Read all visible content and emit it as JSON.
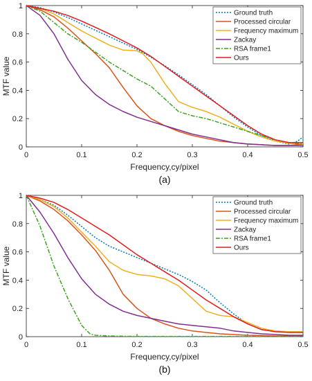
{
  "chart_data": [
    {
      "type": "line",
      "caption": "(a)",
      "xlabel": "Frequency,cy/pixel",
      "ylabel": "MTF value",
      "xlim": [
        0,
        0.5
      ],
      "ylim": [
        0,
        1
      ],
      "xticks": [
        0,
        0.1,
        0.2,
        0.3,
        0.4,
        0.5
      ],
      "yticks": [
        0,
        0.2,
        0.4,
        0.6,
        0.8,
        1
      ],
      "xtick_labels": [
        "0",
        "0.1",
        "0.2",
        "0.3",
        "0.4",
        "0.5"
      ],
      "ytick_labels": [
        "0",
        "0.2",
        "0.4",
        "0.6",
        "0.8",
        "1"
      ],
      "grid": false,
      "legend_position": "top-right",
      "series": [
        {
          "name": "Ground truth",
          "color": "#0072BD",
          "dash": "dotted",
          "x": [
            0,
            0.025,
            0.05,
            0.075,
            0.1,
            0.125,
            0.15,
            0.175,
            0.2,
            0.225,
            0.25,
            0.275,
            0.3,
            0.325,
            0.35,
            0.375,
            0.4,
            0.425,
            0.45,
            0.475,
            0.49,
            0.5
          ],
          "y": [
            1,
            0.985,
            0.955,
            0.915,
            0.87,
            0.825,
            0.78,
            0.735,
            0.69,
            0.635,
            0.575,
            0.51,
            0.44,
            0.37,
            0.29,
            0.21,
            0.14,
            0.08,
            0.04,
            0.02,
            0.04,
            0.07
          ]
        },
        {
          "name": "Processed circular",
          "color": "#D95319",
          "dash": "solid",
          "x": [
            0,
            0.025,
            0.05,
            0.075,
            0.1,
            0.125,
            0.15,
            0.175,
            0.2,
            0.225,
            0.25,
            0.275,
            0.3,
            0.325,
            0.35,
            0.375,
            0.4,
            0.425,
            0.45,
            0.475,
            0.5
          ],
          "y": [
            1,
            0.97,
            0.92,
            0.84,
            0.75,
            0.66,
            0.56,
            0.42,
            0.29,
            0.2,
            0.15,
            0.11,
            0.08,
            0.06,
            0.04,
            0.03,
            0.02,
            0.015,
            0.01,
            0.01,
            0.02
          ]
        },
        {
          "name": "Frequency maximum",
          "color": "#EDB120",
          "dash": "solid",
          "x": [
            0,
            0.025,
            0.05,
            0.075,
            0.1,
            0.125,
            0.15,
            0.175,
            0.2,
            0.21,
            0.225,
            0.25,
            0.275,
            0.3,
            0.325,
            0.35,
            0.375,
            0.4,
            0.425,
            0.45,
            0.475,
            0.5
          ],
          "y": [
            1,
            0.98,
            0.94,
            0.88,
            0.82,
            0.77,
            0.72,
            0.685,
            0.68,
            0.66,
            0.6,
            0.45,
            0.32,
            0.28,
            0.25,
            0.21,
            0.16,
            0.11,
            0.07,
            0.04,
            0.025,
            0.02
          ]
        },
        {
          "name": "Zackay",
          "color": "#7E2F8E",
          "dash": "solid",
          "x": [
            0,
            0.025,
            0.05,
            0.075,
            0.1,
            0.125,
            0.15,
            0.175,
            0.2,
            0.225,
            0.25,
            0.275,
            0.3,
            0.325,
            0.35,
            0.375,
            0.4,
            0.425,
            0.45,
            0.475,
            0.5
          ],
          "y": [
            1,
            0.93,
            0.8,
            0.62,
            0.47,
            0.37,
            0.3,
            0.25,
            0.21,
            0.18,
            0.15,
            0.12,
            0.09,
            0.07,
            0.05,
            0.03,
            0.02,
            0.015,
            0.01,
            0.01,
            0.01
          ]
        },
        {
          "name": "RSA frame1",
          "color": "#3BA31D",
          "dash": "dashdot",
          "x": [
            0,
            0.025,
            0.05,
            0.075,
            0.1,
            0.125,
            0.15,
            0.175,
            0.2,
            0.225,
            0.25,
            0.275,
            0.3,
            0.325,
            0.35,
            0.375,
            0.4,
            0.425,
            0.45,
            0.475,
            0.5
          ],
          "y": [
            1,
            0.96,
            0.88,
            0.8,
            0.74,
            0.67,
            0.6,
            0.54,
            0.48,
            0.43,
            0.34,
            0.25,
            0.22,
            0.2,
            0.17,
            0.14,
            0.11,
            0.08,
            0.05,
            0.03,
            0.02
          ]
        },
        {
          "name": "Ours",
          "color": "#E31A1C",
          "dash": "solid",
          "x": [
            0,
            0.025,
            0.05,
            0.075,
            0.1,
            0.125,
            0.15,
            0.175,
            0.2,
            0.225,
            0.25,
            0.275,
            0.3,
            0.325,
            0.35,
            0.375,
            0.4,
            0.425,
            0.45,
            0.475,
            0.5
          ],
          "y": [
            1,
            0.98,
            0.96,
            0.93,
            0.89,
            0.845,
            0.8,
            0.75,
            0.7,
            0.64,
            0.57,
            0.5,
            0.43,
            0.36,
            0.29,
            0.22,
            0.15,
            0.09,
            0.05,
            0.03,
            0.03
          ]
        }
      ]
    },
    {
      "type": "line",
      "caption": "(b)",
      "xlabel": "Frequency,cy/pixel",
      "ylabel": "MTF value",
      "xlim": [
        0,
        0.5
      ],
      "ylim": [
        0,
        1
      ],
      "xticks": [
        0,
        0.1,
        0.2,
        0.3,
        0.4,
        0.5
      ],
      "yticks": [
        0,
        0.2,
        0.4,
        0.6,
        0.8,
        1
      ],
      "xtick_labels": [
        "0",
        "0.1",
        "0.2",
        "0.3",
        "0.4",
        "0.5"
      ],
      "ytick_labels": [
        "0",
        "0.2",
        "0.4",
        "0.6",
        "0.8",
        "1"
      ],
      "grid": false,
      "legend_position": "top-right",
      "series": [
        {
          "name": "Ground truth",
          "color": "#0072BD",
          "dash": "dotted",
          "x": [
            0,
            0.025,
            0.05,
            0.075,
            0.1,
            0.125,
            0.15,
            0.175,
            0.2,
            0.225,
            0.25,
            0.275,
            0.3,
            0.325,
            0.35,
            0.375,
            0.4,
            0.425,
            0.45,
            0.475,
            0.5
          ],
          "y": [
            1,
            0.97,
            0.93,
            0.86,
            0.78,
            0.7,
            0.64,
            0.6,
            0.56,
            0.52,
            0.48,
            0.44,
            0.39,
            0.33,
            0.24,
            0.16,
            0.09,
            0.05,
            0.04,
            0.035,
            0.035
          ]
        },
        {
          "name": "Processed circular",
          "color": "#D95319",
          "dash": "solid",
          "x": [
            0,
            0.025,
            0.05,
            0.075,
            0.1,
            0.125,
            0.15,
            0.175,
            0.2,
            0.225,
            0.25,
            0.275,
            0.3,
            0.325,
            0.35,
            0.375,
            0.4,
            0.425,
            0.45,
            0.475,
            0.5
          ],
          "y": [
            1,
            0.96,
            0.9,
            0.82,
            0.72,
            0.61,
            0.47,
            0.3,
            0.2,
            0.13,
            0.09,
            0.06,
            0.04,
            0.03,
            0.02,
            0.015,
            0.01,
            0.008,
            0.005,
            0.005,
            0.005
          ]
        },
        {
          "name": "Frequency maximum",
          "color": "#EDB120",
          "dash": "solid",
          "x": [
            0,
            0.025,
            0.05,
            0.075,
            0.1,
            0.125,
            0.15,
            0.175,
            0.2,
            0.225,
            0.25,
            0.275,
            0.3,
            0.325,
            0.35,
            0.375,
            0.4,
            0.425,
            0.45,
            0.475,
            0.5
          ],
          "y": [
            1,
            0.97,
            0.92,
            0.84,
            0.74,
            0.64,
            0.53,
            0.47,
            0.44,
            0.43,
            0.41,
            0.36,
            0.27,
            0.18,
            0.15,
            0.14,
            0.1,
            0.06,
            0.04,
            0.035,
            0.035
          ]
        },
        {
          "name": "Zackay",
          "color": "#7E2F8E",
          "dash": "solid",
          "x": [
            0,
            0.025,
            0.05,
            0.075,
            0.1,
            0.125,
            0.15,
            0.175,
            0.2,
            0.225,
            0.25,
            0.275,
            0.3,
            0.325,
            0.35,
            0.375,
            0.4,
            0.425,
            0.45,
            0.475,
            0.5
          ],
          "y": [
            1,
            0.88,
            0.73,
            0.56,
            0.41,
            0.3,
            0.23,
            0.18,
            0.15,
            0.13,
            0.11,
            0.09,
            0.08,
            0.07,
            0.06,
            0.04,
            0.03,
            0.02,
            0.015,
            0.01,
            0.01
          ]
        },
        {
          "name": "RSA frame1",
          "color": "#3BA31D",
          "dash": "dashdot",
          "x": [
            0,
            0.025,
            0.05,
            0.075,
            0.1,
            0.115,
            0.125,
            0.15,
            0.175,
            0.2,
            0.3,
            0.4,
            0.5
          ],
          "y": [
            1,
            0.78,
            0.5,
            0.27,
            0.08,
            0.02,
            0.01,
            0.005,
            0.003,
            0.002,
            0.002,
            0.002,
            0.002
          ]
        },
        {
          "name": "Ours",
          "color": "#E31A1C",
          "dash": "solid",
          "x": [
            0,
            0.025,
            0.05,
            0.075,
            0.1,
            0.125,
            0.15,
            0.175,
            0.2,
            0.225,
            0.25,
            0.275,
            0.3,
            0.325,
            0.35,
            0.375,
            0.4,
            0.425,
            0.45,
            0.475,
            0.5
          ],
          "y": [
            1,
            0.98,
            0.95,
            0.9,
            0.84,
            0.78,
            0.72,
            0.65,
            0.58,
            0.52,
            0.46,
            0.4,
            0.33,
            0.26,
            0.2,
            0.14,
            0.09,
            0.05,
            0.035,
            0.03,
            0.03
          ]
        }
      ]
    }
  ]
}
